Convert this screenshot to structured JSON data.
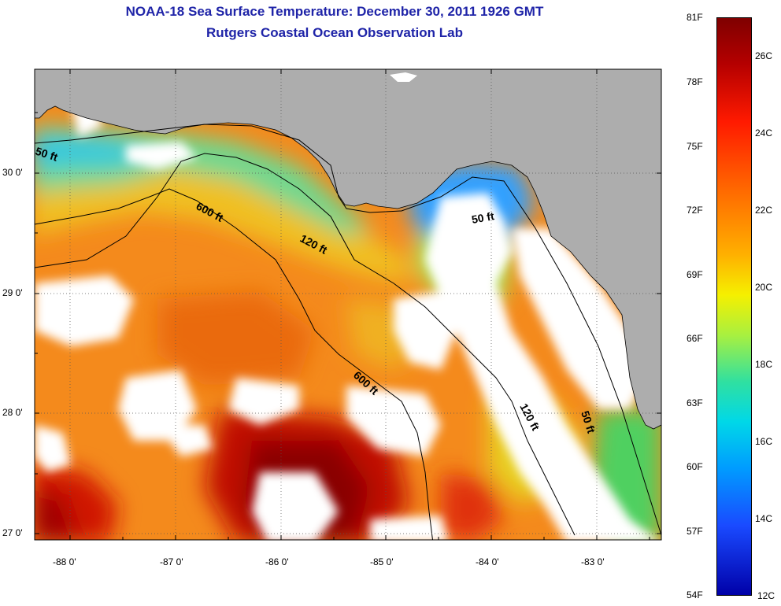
{
  "title": "NOAA-18 Sea Surface Temperature:  December 30, 2011 1926 GMT",
  "subtitle": "Rutgers Coastal Ocean Observation Lab",
  "map": {
    "lon_ticks": [
      "-88 0'",
      "-87 0'",
      "-86 0'",
      "-85 0'",
      "-84 0'",
      "-83 0'"
    ],
    "lat_ticks": [
      "30 0'",
      "29 0'",
      "28 0'",
      "27 0'"
    ],
    "contour_labels": [
      "50 ft",
      "50 ft",
      "50 ft",
      "120 ft",
      "120 ft",
      "600 ft",
      "600 ft"
    ],
    "colors": {
      "land": "#adadad",
      "cloud": "#ffffff",
      "contour": "#000000"
    }
  },
  "colorbar": {
    "fahrenheit": [
      "81F",
      "78F",
      "75F",
      "72F",
      "69F",
      "66F",
      "63F",
      "60F",
      "57F",
      "54F"
    ],
    "celsius": [
      "26C",
      "24C",
      "22C",
      "20C",
      "18C",
      "16C",
      "14C",
      "12C"
    ],
    "range_c": [
      12,
      27
    ]
  }
}
